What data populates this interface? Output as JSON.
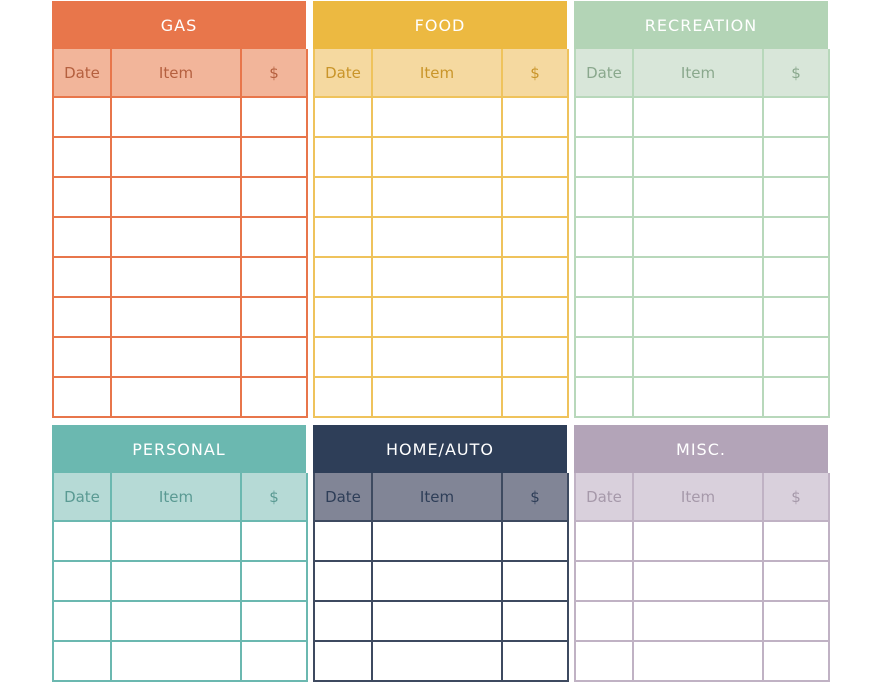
{
  "columns": [
    "Date",
    "Item",
    "$"
  ],
  "panels": [
    {
      "title": "GAS",
      "header_color": "#e8764b",
      "sub_color": "#f2b59a",
      "text_color": "#b5603f",
      "border_color": "#e8764b"
    },
    {
      "title": "FOOD",
      "header_color": "#ecb941",
      "sub_color": "#f5d9a0",
      "text_color": "#c9952a",
      "border_color": "#efc35c"
    },
    {
      "title": "RECREATION",
      "header_color": "#b3d4b6",
      "sub_color": "#d8e6d9",
      "text_color": "#8aa88d",
      "border_color": "#b8d8bb"
    },
    {
      "title": "PERSONAL",
      "header_color": "#6bb8b0",
      "sub_color": "#b6dad6",
      "text_color": "#5a9a93",
      "border_color": "#6bb8b0"
    },
    {
      "title": "HOME/AUTO",
      "header_color": "#2e3e58",
      "sub_color": "#818596",
      "text_color": "#2e3e58",
      "border_color": "#3e4a60"
    },
    {
      "title": "MISC.",
      "header_color": "#b3a4b8",
      "sub_color": "#d9d0dc",
      "text_color": "#a699aa",
      "border_color": "#c0b2c4"
    }
  ]
}
